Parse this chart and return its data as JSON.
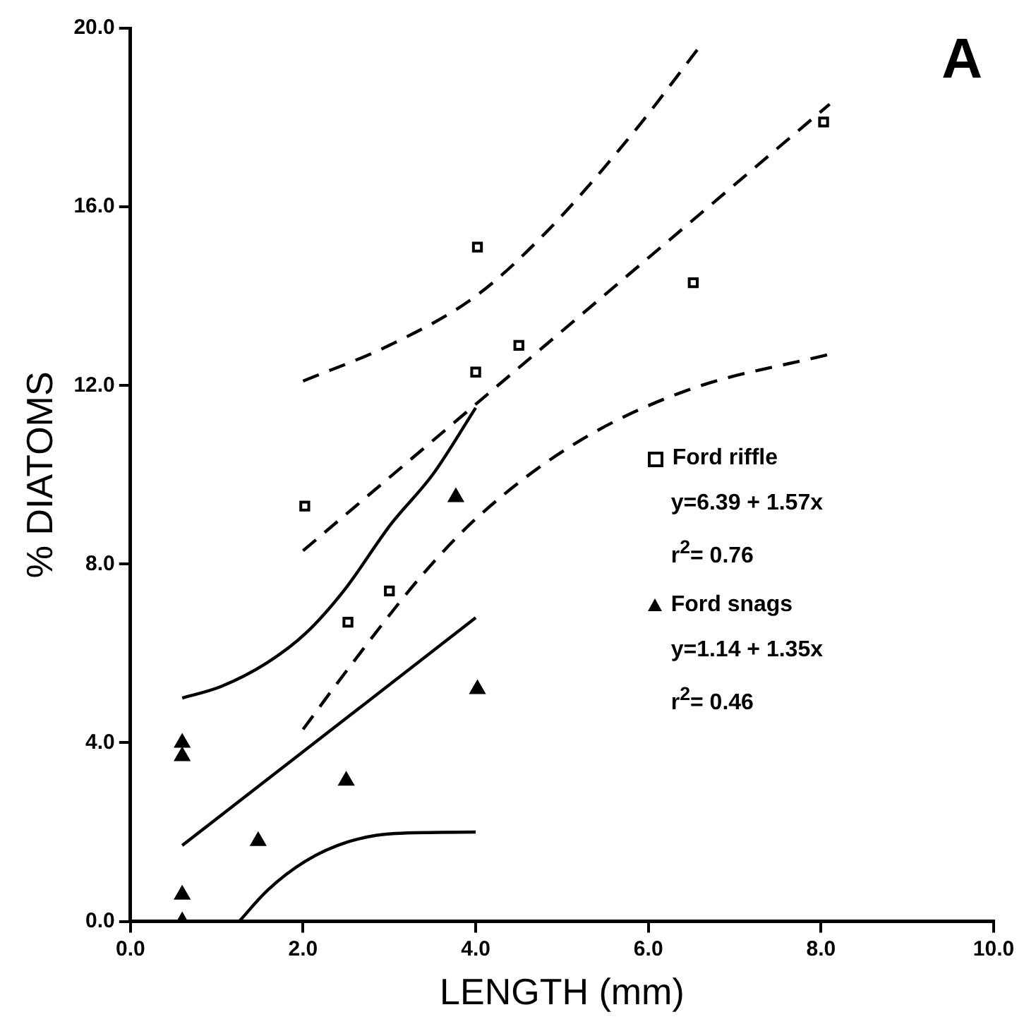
{
  "chart_data": {
    "type": "scatter",
    "title": "A",
    "xlabel": "LENGTH (mm)",
    "ylabel": "% DIATOMS",
    "xlim": [
      0,
      10
    ],
    "xticks": [
      {
        "value": 0,
        "label": "0.0"
      },
      {
        "value": 2,
        "label": "2.0"
      },
      {
        "value": 4,
        "label": "4.0"
      },
      {
        "value": 6,
        "label": "6.0"
      },
      {
        "value": 8,
        "label": "8.0"
      },
      {
        "value": 10,
        "label": "10.0"
      }
    ],
    "ylim": [
      0,
      20
    ],
    "yticks": [
      {
        "value": 0,
        "label": "0.0"
      },
      {
        "value": 4,
        "label": "4.0"
      },
      {
        "value": 8,
        "label": "8.0"
      },
      {
        "value": 12,
        "label": "12.0"
      },
      {
        "value": 16,
        "label": "16.0"
      },
      {
        "value": 20,
        "label": "20.0"
      }
    ],
    "grid": false,
    "legend": "right",
    "annotations": [
      "y=6.39 + 1.57x",
      "r$^{2}$= 0.76",
      "y=1.14 + 1.35x",
      "r$^{2}$= 0.46"
    ],
    "series": [
      {
        "name": "Ford riffle",
        "type": "scatter",
        "marker": "square",
        "color": "#000000",
        "x": [
          2.02,
          2.52,
          3.0,
          4.02,
          4.0,
          4.5,
          6.52,
          8.03
        ],
        "values": [
          9.3,
          6.7,
          7.4,
          15.1,
          12.3,
          12.9,
          14.3,
          17.9
        ]
      },
      {
        "name": "Ford snags",
        "type": "scatter",
        "marker": "triangle",
        "color": "#000000",
        "x": [
          0.6,
          0.6,
          0.6,
          0.6,
          1.48,
          2.5,
          3.77,
          4.02
        ],
        "values": [
          4.0,
          3.7,
          0.6,
          0.0,
          1.8,
          3.15,
          9.5,
          5.2
        ]
      },
      {
        "type": "line",
        "line_style": "dashed",
        "color": "#000000",
        "x": [
          2.0,
          8.1
        ],
        "values": [
          8.3,
          18.3
        ]
      },
      {
        "type": "line",
        "line_style": "dashed",
        "color": "#000000",
        "x": [
          2.0,
          3.0,
          4.0,
          4.8,
          5.8,
          6.6
        ],
        "values": [
          12.1,
          12.9,
          14.0,
          15.4,
          17.6,
          19.6
        ]
      },
      {
        "type": "line",
        "line_style": "dashed",
        "color": "#000000",
        "x": [
          2.0,
          2.5,
          3.4,
          4.05,
          5.15,
          6.46,
          8.1
        ],
        "values": [
          4.3,
          5.6,
          7.8,
          9.1,
          10.7,
          11.9,
          12.7
        ]
      },
      {
        "type": "line",
        "line_style": "solid",
        "color": "#000000",
        "x": [
          0.6,
          4.0
        ],
        "values": [
          1.7,
          6.8
        ]
      },
      {
        "type": "line",
        "line_style": "solid",
        "color": "#000000",
        "x": [
          0.6,
          1.05,
          1.59,
          2.03,
          2.47,
          3.02,
          3.5,
          4.0
        ],
        "values": [
          5.0,
          5.26,
          5.8,
          6.45,
          7.4,
          8.9,
          10.0,
          11.5
        ]
      },
      {
        "type": "line",
        "line_style": "solid",
        "color": "#000000",
        "x": [
          1.26,
          1.59,
          2.03,
          2.52,
          3.07,
          4.0
        ],
        "values": [
          0.0,
          0.7,
          1.35,
          1.78,
          1.97,
          2.0
        ]
      }
    ]
  }
}
